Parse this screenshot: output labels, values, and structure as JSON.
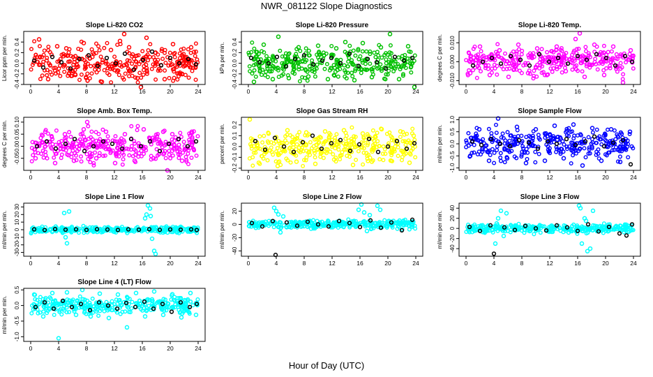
{
  "title": "NWR_081122  Slope Diagnostics",
  "xlabel": "Hour of Day (UTC)",
  "xticks": [
    "0",
    "4",
    "8",
    "12",
    "16",
    "20",
    "24"
  ],
  "chart_data": [
    {
      "type": "scatter",
      "title": "Slope Li-820 CO2",
      "ylabel": "Licor ppm per min.",
      "color": "#ff0000",
      "highlight_color": "#000000",
      "xlim": [
        0,
        24
      ],
      "ylim": [
        -0.4,
        0.6
      ],
      "yticks": [
        "-0.4",
        "-0.2",
        "0.0",
        "0.2",
        "0.4"
      ],
      "yticks_v": [
        -0.4,
        -0.2,
        0.0,
        0.2,
        0.4
      ],
      "spread": 0.16,
      "series": [
        {
          "name": "",
          "x": [
            1.2,
            2.5,
            3.8,
            5.1,
            6.4,
            7.6,
            8.9,
            10.2,
            11.5,
            12.8,
            13.4,
            14.1,
            15.3,
            15.8,
            16.6,
            17.9,
            19.2,
            20.4,
            21.7,
            23.0
          ],
          "y": [
            0.45,
            -0.3,
            0.32,
            0.28,
            -0.22,
            0.38,
            0.2,
            -0.35,
            0.25,
            0.42,
            0.55,
            0.3,
            -0.28,
            -0.45,
            0.48,
            0.2,
            -0.3,
            0.36,
            -0.2,
            0.3
          ]
        },
        {
          "name": "",
          "x": [
            0.5,
            1.8,
            3.1,
            4.4,
            5.7,
            7.0,
            8.3,
            9.6,
            10.9,
            12.2,
            13.5,
            14.8,
            16.1,
            17.4,
            18.7,
            20.0,
            21.3,
            22.6,
            23.7
          ],
          "y": [
            0.05,
            -0.08,
            0.12,
            0.02,
            -0.1,
            0.08,
            0.15,
            -0.05,
            0.1,
            0.0,
            0.18,
            -0.12,
            0.06,
            0.22,
            -0.04,
            0.1,
            0.0,
            0.08,
            -0.02
          ]
        }
      ]
    },
    {
      "type": "scatter",
      "title": "Slope Li-820 Pressure",
      "ylabel": "kPa per min.",
      "color": "#00c000",
      "highlight_color": "#000000",
      "xlim": [
        0,
        24
      ],
      "ylim": [
        -0.4,
        0.6
      ],
      "yticks": [
        "-0.4",
        "-0.2",
        "0.0",
        "0.2",
        "0.4"
      ],
      "yticks_v": [
        -0.4,
        -0.2,
        0.0,
        0.2,
        0.4
      ],
      "spread": 0.14,
      "series": [
        {
          "name": "",
          "x": [
            0.8,
            2.2,
            3.5,
            4.3,
            5.8,
            7.2,
            8.6,
            10.0,
            11.4,
            12.6,
            13.9,
            15.2,
            16.4,
            17.7,
            19.0,
            20.3,
            21.6,
            22.9,
            23.8
          ],
          "y": [
            -0.35,
            0.35,
            -0.3,
            0.5,
            -0.28,
            0.3,
            -0.25,
            0.33,
            -0.3,
            0.28,
            0.4,
            -0.32,
            0.38,
            -0.26,
            0.3,
            0.55,
            -0.3,
            0.32,
            -0.45
          ]
        },
        {
          "name": "",
          "x": [
            0.4,
            1.6,
            2.9,
            4.1,
            5.4,
            6.7,
            8.0,
            9.3,
            10.6,
            11.9,
            13.2,
            14.5,
            15.8,
            17.1,
            18.4,
            19.7,
            21.0,
            22.3,
            23.5
          ],
          "y": [
            0.1,
            0.02,
            0.0,
            0.12,
            -0.06,
            0.08,
            0.15,
            -0.02,
            0.05,
            0.1,
            0.0,
            0.18,
            -0.05,
            0.08,
            0.02,
            -0.1,
            0.12,
            0.05,
            0.1
          ]
        }
      ]
    },
    {
      "type": "scatter",
      "title": "Slope Li-820 Temp.",
      "ylabel": "degrees C per min.",
      "color": "#ff00ff",
      "highlight_color": "#000000",
      "xlim": [
        0,
        24
      ],
      "ylim": [
        -0.012,
        0.016
      ],
      "yticks": [
        "-0.010",
        "0.000",
        "0.010"
      ],
      "yticks_v": [
        -0.01,
        0.0,
        0.01
      ],
      "spread": 0.0035,
      "series": [
        {
          "name": "",
          "x": [
            0.6,
            2.0,
            3.4,
            4.8,
            6.1,
            7.5,
            8.9,
            10.2,
            11.6,
            13.0,
            14.3,
            15.7,
            16.3,
            17.0,
            18.4,
            19.8,
            21.1,
            22.5,
            23.6
          ],
          "y": [
            -0.006,
            0.008,
            -0.007,
            0.006,
            -0.008,
            0.009,
            -0.006,
            0.007,
            -0.007,
            0.008,
            -0.005,
            0.012,
            0.015,
            -0.008,
            0.009,
            -0.007,
            0.008,
            -0.011,
            0.006
          ]
        },
        {
          "name": "",
          "x": [
            1.0,
            2.4,
            3.7,
            5.0,
            6.4,
            7.8,
            9.1,
            10.5,
            11.9,
            13.2,
            14.6,
            16.0,
            17.3,
            18.7,
            20.1,
            21.4,
            22.8,
            23.8
          ],
          "y": [
            -0.002,
            0.0,
            0.002,
            -0.001,
            0.003,
            0.001,
            -0.002,
            0.004,
            0.0,
            0.002,
            -0.001,
            0.003,
            0.001,
            0.004,
            0.002,
            -0.002,
            0.003,
            0.0
          ]
        }
      ]
    },
    {
      "type": "scatter",
      "title": "Slope Amb. Box Temp.",
      "ylabel": "degrees C per min.",
      "color": "#ff00ff",
      "highlight_color": "#000000",
      "xlim": [
        0,
        24
      ],
      "ylim": [
        -0.1,
        0.12
      ],
      "yticks": [
        "-0.05",
        "0.00",
        "0.05",
        "0.10"
      ],
      "yticks_v": [
        -0.05,
        0.0,
        0.05,
        0.1
      ],
      "spread": 0.032,
      "series": [
        {
          "name": "",
          "x": [
            0.7,
            2.1,
            3.5,
            4.9,
            6.2,
            7.6,
            8.1,
            9.4,
            10.8,
            12.1,
            13.5,
            14.9,
            16.2,
            17.6,
            19.0,
            19.6,
            20.3,
            21.7,
            23.1
          ],
          "y": [
            -0.05,
            0.06,
            -0.07,
            0.05,
            -0.06,
            0.07,
            0.1,
            -0.05,
            0.06,
            -0.07,
            0.05,
            -0.06,
            0.07,
            -0.05,
            0.06,
            -0.1,
            0.05,
            -0.06,
            0.06
          ]
        },
        {
          "name": "",
          "x": [
            0.9,
            2.3,
            3.6,
            5.0,
            6.3,
            7.7,
            9.0,
            10.4,
            11.7,
            13.1,
            14.4,
            15.8,
            17.1,
            18.5,
            19.8,
            21.2,
            22.5,
            23.7
          ],
          "y": [
            0.0,
            0.02,
            -0.01,
            0.01,
            0.03,
            -0.02,
            0.0,
            0.02,
            0.01,
            -0.01,
            0.03,
            0.0,
            0.02,
            -0.02,
            0.01,
            0.03,
            0.0,
            0.02
          ]
        }
      ]
    },
    {
      "type": "scatter",
      "title": "Slope Gas Stream RH",
      "ylabel": "percent per min.",
      "color": "#ffff00",
      "highlight_color": "#000000",
      "xlim": [
        0,
        24
      ],
      "ylim": [
        -0.22,
        0.27
      ],
      "yticks": [
        "-0.2",
        "-0.1",
        "0.0",
        "0.1",
        "0.2"
      ],
      "yticks_v": [
        -0.2,
        -0.1,
        0.0,
        0.1,
        0.2
      ],
      "spread": 0.07,
      "series": [
        {
          "name": "",
          "x": [
            0.2,
            1.5,
            2.9,
            4.2,
            5.6,
            6.9,
            8.3,
            9.6,
            11.0,
            12.3,
            13.7,
            15.0,
            16.4,
            17.7,
            19.1,
            20.4,
            21.8,
            23.1,
            23.7
          ],
          "y": [
            0.25,
            -0.15,
            0.12,
            -0.18,
            0.15,
            -0.14,
            0.13,
            -0.16,
            0.14,
            -0.12,
            0.15,
            -0.17,
            0.12,
            -0.14,
            0.16,
            -0.13,
            0.14,
            -0.15,
            0.1
          ]
        },
        {
          "name": "",
          "x": [
            1.0,
            2.4,
            3.8,
            5.1,
            6.5,
            7.8,
            9.2,
            10.5,
            11.9,
            13.2,
            14.6,
            15.9,
            17.3,
            18.6,
            20.0,
            21.3,
            22.7,
            23.8
          ],
          "y": [
            0.05,
            -0.03,
            0.08,
            0.0,
            -0.05,
            0.04,
            0.1,
            -0.02,
            0.03,
            0.06,
            -0.04,
            0.02,
            0.07,
            -0.05,
            0.0,
            0.05,
            -0.02,
            0.03
          ]
        }
      ]
    },
    {
      "type": "scatter",
      "title": "Slope Sample Flow",
      "ylabel": "ml/min per min.",
      "color": "#0000ff",
      "highlight_color": "#000000",
      "xlim": [
        0,
        24
      ],
      "ylim": [
        -1.1,
        1.1
      ],
      "yticks": [
        "-1.0",
        "-0.5",
        "0.0",
        "0.5",
        "1.0"
      ],
      "yticks_v": [
        -1.0,
        -0.5,
        0.0,
        0.5,
        1.0
      ],
      "spread": 0.3,
      "series": [
        {
          "name": "",
          "x": [
            0.6,
            1.9,
            3.3,
            4.6,
            5.9,
            7.3,
            8.6,
            10.0,
            11.3,
            12.7,
            14.0,
            15.4,
            16.7,
            18.1,
            19.4,
            20.8,
            22.1,
            23.5
          ],
          "y": [
            -0.5,
            0.6,
            -0.7,
            1.05,
            -0.6,
            0.7,
            -0.8,
            0.6,
            -0.7,
            0.75,
            -0.6,
            0.8,
            -0.9,
            0.65,
            -0.7,
            0.6,
            -0.75,
            0.5
          ]
        },
        {
          "name": "",
          "x": [
            0.9,
            2.2,
            3.6,
            4.9,
            6.3,
            7.6,
            9.0,
            10.3,
            11.7,
            13.0,
            14.4,
            15.7,
            17.1,
            18.4,
            19.8,
            21.1,
            22.5,
            23.6
          ],
          "y": [
            0.1,
            -0.05,
            0.2,
            0.0,
            -0.1,
            0.15,
            0.05,
            -0.2,
            0.1,
            0.0,
            0.2,
            -0.05,
            0.1,
            0.3,
            -0.1,
            0.05,
            0.15,
            -0.85
          ]
        }
      ]
    },
    {
      "type": "scatter",
      "title": "Slope Line 1 Flow",
      "ylabel": "ml/min per min.",
      "color": "#00ffff",
      "highlight_color": "#000000",
      "xlim": [
        0,
        24
      ],
      "ylim": [
        -35,
        35
      ],
      "yticks": [
        "-30",
        "-20",
        "-10",
        "0",
        "10",
        "20",
        "30"
      ],
      "yticks_v": [
        -30,
        -20,
        -10,
        0,
        10,
        20,
        30
      ],
      "spread": 2,
      "series": [
        {
          "name": "",
          "x": [
            4.8,
            5.2,
            5.5,
            5.0,
            16.4,
            16.8,
            17.1,
            17.4,
            17.7,
            16.6,
            17.2,
            17.9
          ],
          "y": [
            22,
            -18,
            24,
            -10,
            15,
            32,
            28,
            -12,
            -28,
            20,
            18,
            -32
          ]
        },
        {
          "name": "",
          "x": [
            0.5,
            2.0,
            3.5,
            5.0,
            6.5,
            8.0,
            9.5,
            11.0,
            12.5,
            14.0,
            15.5,
            17.0,
            18.5,
            20.0,
            21.5,
            23.0,
            23.8
          ],
          "y": [
            0.5,
            -0.5,
            0.8,
            0.0,
            0.5,
            -0.3,
            0.6,
            0.2,
            -0.4,
            0.5,
            0.0,
            0.6,
            -0.2,
            0.4,
            0.0,
            0.5,
            -0.5
          ]
        }
      ]
    },
    {
      "type": "scatter",
      "title": "Slope Line 2 Flow",
      "ylabel": "ml/min per min.",
      "color": "#00ffff",
      "highlight_color": "#000000",
      "xlim": [
        0,
        24
      ],
      "ylim": [
        -48,
        32
      ],
      "yticks": [
        "-40",
        "-20",
        "0",
        "20"
      ],
      "yticks_v": [
        -40,
        -20,
        0,
        20
      ],
      "spread": 3,
      "series": [
        {
          "name": "",
          "x": [
            3.7,
            4.0,
            4.3,
            4.6,
            5.0,
            15.8,
            16.2,
            16.6,
            17.0,
            17.4,
            18.5,
            18.9
          ],
          "y": [
            25,
            20,
            15,
            -12,
            12,
            22,
            30,
            18,
            -10,
            14,
            28,
            22
          ]
        },
        {
          "name": "",
          "x": [
            0.5,
            2.0,
            3.5,
            3.9,
            5.5,
            7.0,
            8.5,
            10.0,
            11.5,
            13.0,
            14.5,
            16.0,
            17.5,
            19.0,
            20.5,
            22.0,
            23.5
          ],
          "y": [
            2,
            -3,
            5,
            -46,
            3,
            -2,
            4,
            0,
            -3,
            5,
            2,
            -4,
            6,
            -5,
            3,
            -9,
            7
          ]
        }
      ]
    },
    {
      "type": "scatter",
      "title": "Slope Line 3 Flow",
      "ylabel": "ml/min per min.",
      "color": "#00ffff",
      "highlight_color": "#000000",
      "xlim": [
        0,
        24
      ],
      "ylim": [
        -55,
        50
      ],
      "yticks": [
        "-40",
        "-20",
        "0",
        "20",
        "40"
      ],
      "yticks_v": [
        -40,
        -20,
        0,
        20,
        40
      ],
      "spread": 4,
      "series": [
        {
          "name": "",
          "x": [
            4.2,
            4.6,
            5.0,
            5.4,
            5.8,
            4.4,
            16.2,
            16.6,
            17.0,
            17.4,
            17.8,
            18.2,
            17.2,
            16.4
          ],
          "y": [
            -30,
            20,
            35,
            -15,
            30,
            10,
            45,
            -30,
            20,
            -45,
            -40,
            35,
            15,
            40
          ]
        },
        {
          "name": "",
          "x": [
            0.5,
            2.0,
            3.5,
            4.0,
            5.5,
            7.0,
            8.5,
            10.0,
            11.5,
            13.0,
            14.5,
            16.0,
            17.5,
            19.0,
            20.5,
            22.0,
            23.0,
            23.8
          ],
          "y": [
            3,
            -5,
            6,
            -50,
            2,
            -3,
            5,
            0,
            -4,
            6,
            2,
            -5,
            8,
            -6,
            3,
            -10,
            -14,
            8
          ]
        }
      ]
    },
    {
      "type": "scatter",
      "title": "Slope Line 4 (LT) Flow",
      "ylabel": "ml/min per min.",
      "color": "#00ffff",
      "highlight_color": "#000000",
      "xlim": [
        0,
        24
      ],
      "ylim": [
        -1.15,
        0.55
      ],
      "yticks": [
        "-1.0",
        "-0.5",
        "0.0",
        "0.5"
      ],
      "yticks_v": [
        -1.0,
        -0.5,
        0.0,
        0.5
      ],
      "spread": 0.13,
      "series": [
        {
          "name": "",
          "x": [
            0.5,
            1.8,
            3.1,
            4.0,
            5.2,
            6.5,
            7.4,
            8.6,
            9.9,
            11.2,
            12.5,
            13.8,
            15.1,
            16.4,
            17.7,
            19.0,
            20.3,
            21.6,
            22.9,
            23.7
          ],
          "y": [
            0.35,
            -0.35,
            0.4,
            -1.05,
            0.42,
            -0.3,
            0.5,
            -0.35,
            0.38,
            -0.4,
            0.35,
            -0.7,
            0.4,
            -0.35,
            0.45,
            -0.3,
            0.36,
            -0.38,
            0.4,
            -0.3
          ]
        },
        {
          "name": "",
          "x": [
            0.7,
            2.0,
            3.3,
            4.6,
            5.9,
            7.2,
            8.5,
            9.8,
            11.1,
            12.4,
            13.7,
            15.0,
            16.3,
            17.6,
            18.9,
            20.2,
            21.5,
            22.8,
            23.8
          ],
          "y": [
            -0.05,
            0.1,
            -0.1,
            0.15,
            -0.05,
            0.05,
            -0.15,
            0.1,
            0.0,
            -0.1,
            0.08,
            -0.05,
            0.12,
            -0.1,
            0.05,
            -0.2,
            0.1,
            -0.05,
            0.05
          ]
        }
      ]
    }
  ]
}
